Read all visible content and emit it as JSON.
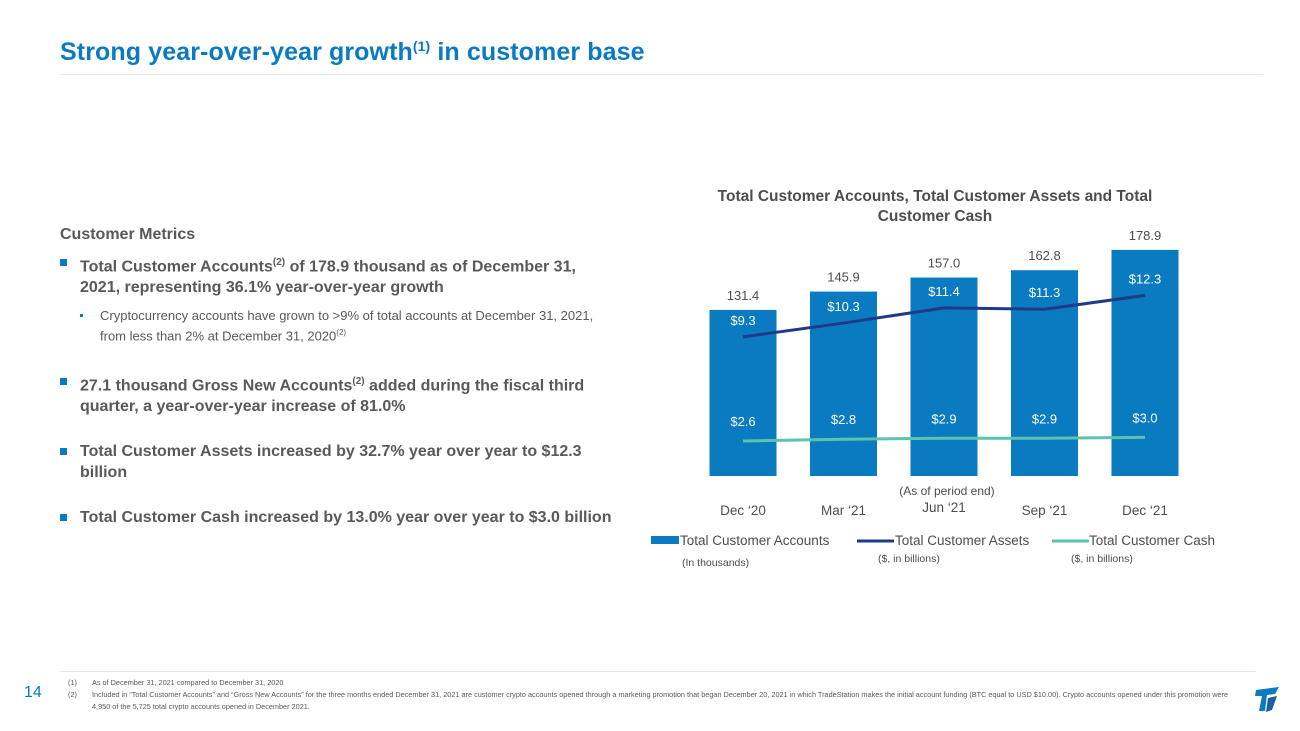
{
  "slide": {
    "title": "Strong year-over-year growth",
    "title_sup": "(1)",
    "title_suffix": " in customer base",
    "page_number": "14"
  },
  "metrics": {
    "heading": "Customer Metrics",
    "b1_prefix": "Total Customer Accounts",
    "b1_sup": "(2)",
    "b1_rest": " of 178.9 thousand as of December 31, 2021, representing 36.1% year-over-year growth",
    "b1_sub": "Cryptocurrency accounts have grown to >9% of total accounts at December 31, 2021, from less than 2% at December 31, 2020",
    "b1_sub_sup": "(2)",
    "b2_prefix": "27.1 thousand Gross New Accounts",
    "b2_sup": "(2)",
    "b2_rest": " added during the fiscal third quarter, a year-over-year increase of 81.0%",
    "b3": "Total Customer Assets increased by 32.7% year over year to $12.3 billion",
    "b4": "Total Customer Cash increased by 13.0% year over year to $3.0 billion"
  },
  "chart_data": {
    "type": "bar",
    "title": "Total Customer Accounts, Total Customer Assets and Total Customer Cash",
    "subtitle": "(As of period end)",
    "categories": [
      "Dec ‘20",
      "Mar ‘21",
      "Jun ‘21",
      "Sep ‘21",
      "Dec ‘21"
    ],
    "series": [
      {
        "name": "Total Customer Accounts",
        "unit_note": "(In thousands)",
        "kind": "bar",
        "values": [
          131.4,
          145.9,
          157.0,
          162.8,
          178.9
        ],
        "labels": [
          "131.4",
          "145.9",
          "157.0",
          "162.8",
          "178.9"
        ],
        "color": "#0a7ac1"
      },
      {
        "name": "Total Customer Assets",
        "unit_note": "($, in billions)",
        "kind": "line",
        "values": [
          9.3,
          10.3,
          11.4,
          11.3,
          12.3
        ],
        "labels": [
          "$9.3",
          "$10.3",
          "$11.4",
          "$11.3",
          "$12.3"
        ],
        "color": "#1f3a8a"
      },
      {
        "name": "Total Customer Cash",
        "unit_note": "($, in billions)",
        "kind": "line",
        "values": [
          2.6,
          2.8,
          2.9,
          2.9,
          3.0
        ],
        "labels": [
          "$2.6",
          "$2.8",
          "$2.9",
          "$2.9",
          "$3.0"
        ],
        "color": "#5cc3ac"
      }
    ]
  },
  "footnotes": [
    {
      "num": "(1)",
      "text": "As of December 31, 2021 compared to December 31, 2020"
    },
    {
      "num": "(2)",
      "text": "Included in “Total Customer Accounts” and “Gross New Accounts” for the three months ended December 31, 2021 are customer crypto accounts opened through a marketing promotion that began December 20, 2021 in which TradeStation makes the initial account funding (BTC equal to USD $10.00). Crypto accounts opened under this promotion were 4,950 of the 5,725 total crypto accounts opened in December 2021."
    }
  ]
}
